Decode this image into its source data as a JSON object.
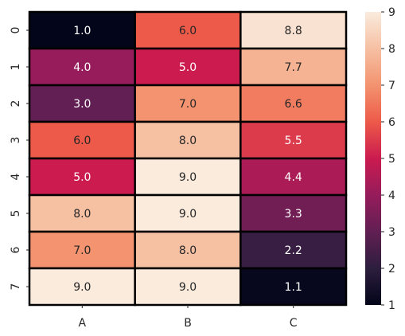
{
  "chart_data": {
    "type": "heatmap",
    "title": "",
    "xlabel": "",
    "ylabel": "",
    "x_categories": [
      "A",
      "B",
      "C"
    ],
    "y_categories": [
      "0",
      "1",
      "2",
      "3",
      "4",
      "5",
      "6",
      "7"
    ],
    "values": [
      [
        1.0,
        6.0,
        8.8
      ],
      [
        4.0,
        5.0,
        7.7
      ],
      [
        3.0,
        7.0,
        6.6
      ],
      [
        6.0,
        8.0,
        5.5
      ],
      [
        5.0,
        9.0,
        4.4
      ],
      [
        8.0,
        9.0,
        3.3
      ],
      [
        7.0,
        8.0,
        2.2
      ],
      [
        9.0,
        9.0,
        1.1
      ]
    ],
    "annotations": [
      [
        "1.0",
        "6.0",
        "8.8"
      ],
      [
        "4.0",
        "5.0",
        "7.7"
      ],
      [
        "3.0",
        "7.0",
        "6.6"
      ],
      [
        "6.0",
        "8.0",
        "5.5"
      ],
      [
        "5.0",
        "9.0",
        "4.4"
      ],
      [
        "8.0",
        "9.0",
        "3.3"
      ],
      [
        "7.0",
        "8.0",
        "2.2"
      ],
      [
        "9.0",
        "9.0",
        "1.1"
      ]
    ],
    "colormap": "rocket",
    "vmin": 1,
    "vmax": 9,
    "colorbar_ticks": [
      "1",
      "2",
      "3",
      "4",
      "5",
      "6",
      "7",
      "8",
      "9"
    ],
    "cell_border_color": "#000000",
    "grid": false,
    "legend": "colorbar-right"
  }
}
